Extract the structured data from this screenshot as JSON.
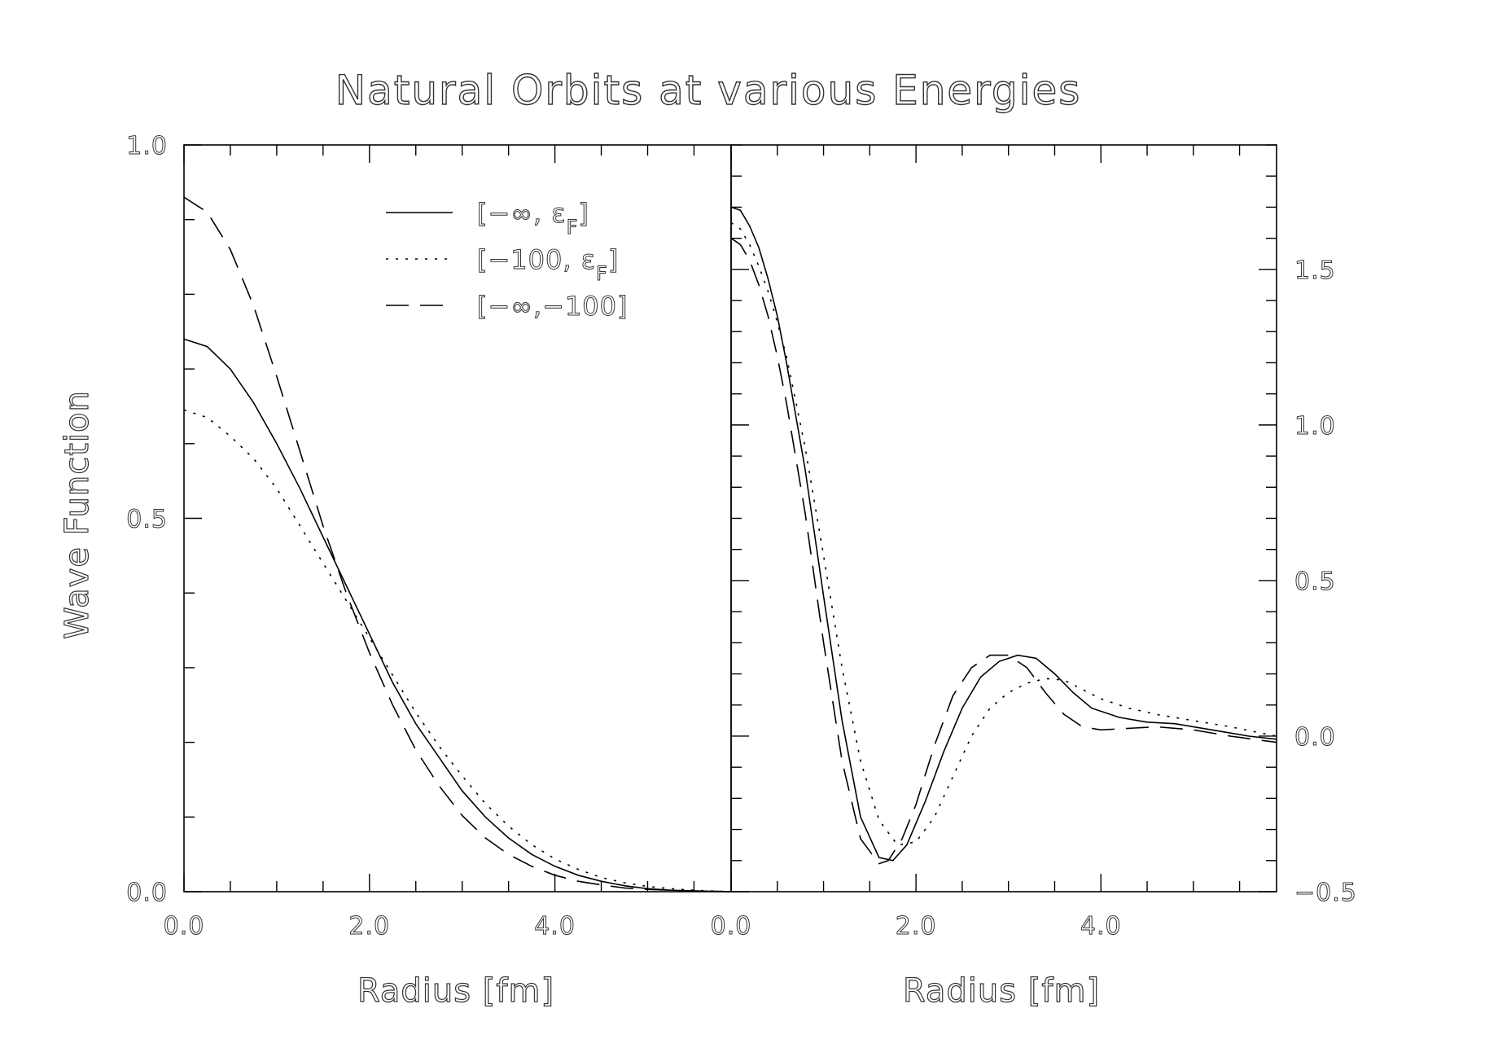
{
  "chart_data": {
    "title": "Natural Orbits at various Energies",
    "colors": {
      "line": "#000000",
      "text_outline": "#333333",
      "background": "#ffffff"
    },
    "legend": {
      "placement": "top-center of left panel",
      "entries": [
        {
          "label": "[−∞, ε",
          "sub": "F",
          "close": "]",
          "style": "solid"
        },
        {
          "label": "[−100, ε",
          "sub": "F",
          "close": "]",
          "style": "dotted"
        },
        {
          "label": "[−∞,−100]",
          "sub": "",
          "close": "",
          "style": "dashed"
        }
      ]
    },
    "panels": [
      {
        "type": "line",
        "xlabel": "Radius [fm]",
        "ylabel": "Wave Function",
        "xlim": [
          0,
          5.9
        ],
        "ylim": [
          0,
          1.0
        ],
        "y_axis_side": "left",
        "xticks": [
          0.0,
          2.0,
          4.0
        ],
        "xtick_labels": [
          "0.0",
          "2.0",
          "4.0"
        ],
        "yticks": [
          0.0,
          0.5,
          1.0
        ],
        "ytick_labels": [
          "0.0",
          "0.5",
          "1.0"
        ],
        "series": [
          {
            "style": "solid",
            "x": [
              0,
              0.25,
              0.5,
              0.75,
              1,
              1.25,
              1.5,
              1.75,
              2,
              2.25,
              2.5,
              2.75,
              3,
              3.25,
              3.5,
              3.75,
              4,
              4.25,
              4.5,
              4.75,
              5,
              5.25,
              5.5,
              5.9
            ],
            "y": [
              0.74,
              0.73,
              0.7,
              0.655,
              0.6,
              0.54,
              0.475,
              0.41,
              0.345,
              0.28,
              0.225,
              0.18,
              0.135,
              0.1,
              0.072,
              0.05,
              0.034,
              0.022,
              0.014,
              0.008,
              0.004,
              0.002,
              0.001,
              0.0
            ]
          },
          {
            "style": "dotted",
            "x": [
              0,
              0.25,
              0.5,
              0.75,
              1,
              1.25,
              1.5,
              1.75,
              2,
              2.25,
              2.5,
              2.75,
              3,
              3.25,
              3.5,
              3.75,
              4,
              4.25,
              4.5,
              4.75,
              5,
              5.25,
              5.5,
              5.9
            ],
            "y": [
              0.645,
              0.635,
              0.61,
              0.58,
              0.54,
              0.49,
              0.44,
              0.39,
              0.34,
              0.29,
              0.24,
              0.195,
              0.155,
              0.118,
              0.088,
              0.063,
              0.044,
              0.03,
              0.019,
              0.012,
              0.007,
              0.004,
              0.002,
              0.0
            ]
          },
          {
            "style": "dashed",
            "x": [
              0,
              0.25,
              0.5,
              0.75,
              1,
              1.25,
              1.5,
              1.75,
              2,
              2.25,
              2.5,
              2.75,
              3,
              3.25,
              3.5,
              3.75,
              4,
              4.25,
              4.5,
              4.75,
              5,
              5.25,
              5.5,
              5.9
            ],
            "y": [
              0.93,
              0.91,
              0.86,
              0.785,
              0.69,
              0.59,
              0.49,
              0.4,
              0.32,
              0.25,
              0.19,
              0.142,
              0.102,
              0.072,
              0.05,
              0.034,
              0.022,
              0.014,
              0.009,
              0.005,
              0.003,
              0.002,
              0.001,
              0.0
            ]
          }
        ]
      },
      {
        "type": "line",
        "xlabel": "Radius [fm]",
        "ylabel": "",
        "xlim": [
          0,
          5.9
        ],
        "ylim": [
          -0.5,
          1.9
        ],
        "y_axis_side": "right",
        "xticks": [
          0.0,
          2.0,
          4.0
        ],
        "xtick_labels": [
          "0.0",
          "2.0",
          "4.0"
        ],
        "yticks": [
          -0.5,
          0.0,
          0.5,
          1.0,
          1.5
        ],
        "ytick_labels": [
          "−0.5",
          "0.0",
          "0.5",
          "1.0",
          "1.5"
        ],
        "series": [
          {
            "style": "solid",
            "x": [
              0,
              0.1,
              0.2,
              0.3,
              0.4,
              0.5,
              0.6,
              0.8,
              1.0,
              1.2,
              1.4,
              1.6,
              1.75,
              1.9,
              2.1,
              2.3,
              2.5,
              2.7,
              2.9,
              3.1,
              3.3,
              3.5,
              3.7,
              3.9,
              4.2,
              4.5,
              4.8,
              5.2,
              5.6,
              5.9
            ],
            "y": [
              1.7,
              1.69,
              1.64,
              1.57,
              1.47,
              1.35,
              1.2,
              0.86,
              0.45,
              0.05,
              -0.26,
              -0.39,
              -0.4,
              -0.35,
              -0.21,
              -0.05,
              0.09,
              0.19,
              0.24,
              0.26,
              0.25,
              0.2,
              0.14,
              0.09,
              0.06,
              0.045,
              0.04,
              0.02,
              0.0,
              -0.01
            ]
          },
          {
            "style": "dotted",
            "x": [
              0,
              0.1,
              0.2,
              0.3,
              0.4,
              0.5,
              0.6,
              0.8,
              1.0,
              1.2,
              1.4,
              1.6,
              1.8,
              2.0,
              2.2,
              2.4,
              2.6,
              2.8,
              3.0,
              3.2,
              3.4,
              3.6,
              3.8,
              4.0,
              4.3,
              4.6,
              5.0,
              5.4,
              5.9
            ],
            "y": [
              1.65,
              1.63,
              1.58,
              1.51,
              1.43,
              1.33,
              1.22,
              0.93,
              0.58,
              0.22,
              -0.08,
              -0.27,
              -0.35,
              -0.34,
              -0.26,
              -0.13,
              0.0,
              0.09,
              0.14,
              0.17,
              0.185,
              0.18,
              0.15,
              0.12,
              0.09,
              0.07,
              0.05,
              0.03,
              0.0
            ]
          },
          {
            "style": "dashed",
            "x": [
              0,
              0.1,
              0.2,
              0.3,
              0.4,
              0.5,
              0.6,
              0.8,
              1.0,
              1.2,
              1.4,
              1.6,
              1.7,
              1.85,
              2.0,
              2.2,
              2.4,
              2.6,
              2.8,
              3.0,
              3.2,
              3.4,
              3.6,
              3.8,
              4.0,
              4.3,
              4.6,
              5.0,
              5.4,
              5.9
            ],
            "y": [
              1.6,
              1.58,
              1.53,
              1.45,
              1.35,
              1.22,
              1.07,
              0.72,
              0.3,
              -0.08,
              -0.33,
              -0.41,
              -0.4,
              -0.33,
              -0.22,
              -0.03,
              0.13,
              0.22,
              0.26,
              0.26,
              0.22,
              0.14,
              0.07,
              0.03,
              0.02,
              0.025,
              0.03,
              0.02,
              0.0,
              -0.02
            ]
          }
        ]
      }
    ]
  }
}
